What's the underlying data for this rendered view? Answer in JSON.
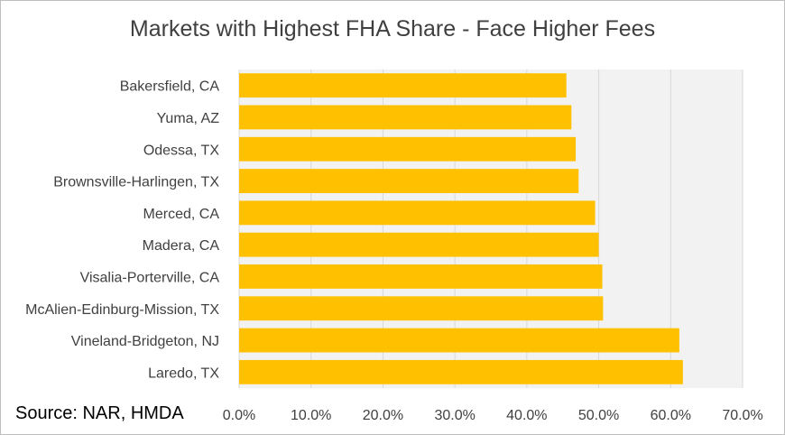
{
  "chart_data": {
    "type": "bar",
    "orientation": "horizontal",
    "title": "Markets with Highest FHA Share - Face Higher Fees",
    "categories": [
      "Bakersfield, CA",
      "Yuma, AZ",
      "Odessa, TX",
      "Brownsville-Harlingen, TX",
      "Merced, CA",
      "Madera, CA",
      "Visalia-Porterville, CA",
      "McAlien-Edinburg-Mission, TX",
      "Vineland-Bridgeton, NJ",
      "Laredo, TX"
    ],
    "values": [
      45.5,
      46.2,
      46.8,
      47.2,
      49.5,
      50.0,
      50.5,
      50.6,
      61.2,
      61.7
    ],
    "xlim": [
      0,
      70
    ],
    "xticks": [
      "0.0%",
      "10.0%",
      "20.0%",
      "30.0%",
      "40.0%",
      "50.0%",
      "60.0%",
      "70.0%"
    ],
    "xlabel": "",
    "ylabel": "",
    "grid": true,
    "bar_color": "#ffc000",
    "plot_background": "#f2f2f2",
    "gridline_color": "#d9d9d9"
  },
  "source": "Source: NAR, HMDA"
}
